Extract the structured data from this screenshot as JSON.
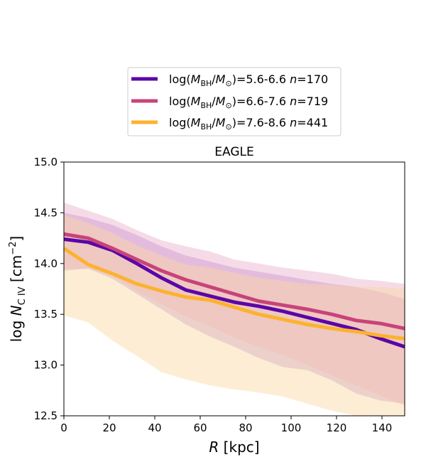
{
  "chart_data": {
    "type": "line",
    "title": "EAGLE",
    "xlabel": {
      "var": "R",
      "unit": " [kpc]"
    },
    "ylabel": {
      "prefix": "log ",
      "var": "N",
      "sub": "C IV",
      "unit": " [cm",
      "sup": "−2",
      "close": "]"
    },
    "xlim": [
      0,
      150
    ],
    "ylim": [
      12.5,
      15.0
    ],
    "xticks": [
      0,
      20,
      40,
      60,
      80,
      100,
      120,
      140
    ],
    "yticks": [
      12.5,
      13.0,
      13.5,
      14.0,
      14.5,
      15.0
    ],
    "xtick_labels": [
      "0",
      "20",
      "40",
      "60",
      "80",
      "100",
      "120",
      "140"
    ],
    "ytick_labels": [
      "12.5",
      "13.0",
      "13.5",
      "14.0",
      "14.5",
      "15.0"
    ],
    "legend_position": "top-center",
    "grid": false,
    "series": [
      {
        "legend": {
          "log": "log(",
          "m1": "M",
          "s1": "BH",
          "sl": "/",
          "m2": "M",
          "s2": "⊙",
          "range": ")=5.6-6.6 ",
          "n": "n",
          "count": "=170"
        },
        "color": "#5b06a6",
        "band_color": "#bc8fd9",
        "x": [
          0,
          10.7,
          21.4,
          32.1,
          42.9,
          53.6,
          64.3,
          75,
          85.7,
          96.4,
          107.1,
          117.9,
          128.6,
          139.3,
          150
        ],
        "values": [
          14.24,
          14.21,
          14.13,
          14.0,
          13.86,
          13.74,
          13.68,
          13.62,
          13.58,
          13.53,
          13.47,
          13.41,
          13.35,
          13.26,
          13.18
        ],
        "upper": [
          14.5,
          14.45,
          14.38,
          14.28,
          14.17,
          14.08,
          14.02,
          13.96,
          13.92,
          13.88,
          13.84,
          13.8,
          13.77,
          13.72,
          13.65
        ],
        "lower": [
          13.93,
          13.95,
          13.85,
          13.7,
          13.55,
          13.4,
          13.28,
          13.18,
          13.07,
          12.98,
          12.95,
          12.85,
          12.72,
          12.65,
          12.62
        ]
      },
      {
        "legend": {
          "log": "log(",
          "m1": "M",
          "s1": "BH",
          "sl": "/",
          "m2": "M",
          "s2": "⊙",
          "range": ")=6.6-7.6 ",
          "n": "n",
          "count": "=719"
        },
        "color": "#c8437a",
        "band_color": "#e6a6c4",
        "x": [
          0,
          10.7,
          21.4,
          32.1,
          42.9,
          53.6,
          64.3,
          75,
          85.7,
          96.4,
          107.1,
          117.9,
          128.6,
          139.3,
          150
        ],
        "values": [
          14.29,
          14.25,
          14.15,
          14.04,
          13.93,
          13.84,
          13.77,
          13.7,
          13.63,
          13.59,
          13.55,
          13.5,
          13.44,
          13.41,
          13.36
        ],
        "upper": [
          14.6,
          14.52,
          14.44,
          14.33,
          14.23,
          14.17,
          14.12,
          14.04,
          14.0,
          13.96,
          13.93,
          13.9,
          13.85,
          13.83,
          13.8
        ],
        "lower": [
          13.95,
          13.95,
          13.88,
          13.73,
          13.6,
          13.48,
          13.38,
          13.27,
          13.18,
          13.1,
          13.0,
          12.9,
          12.8,
          12.7,
          12.6
        ]
      },
      {
        "legend": {
          "log": "log(",
          "m1": "M",
          "s1": "BH",
          "sl": "/",
          "m2": "M",
          "s2": "⊙",
          "range": ")=7.6-8.6 ",
          "n": "n",
          "count": "=441"
        },
        "color": "#fdb22e",
        "band_color": "#fbd8a0",
        "x": [
          0,
          10.7,
          21.4,
          32.1,
          42.9,
          53.6,
          64.3,
          75,
          85.7,
          96.4,
          107.1,
          117.9,
          128.6,
          139.3,
          150
        ],
        "values": [
          14.15,
          13.99,
          13.9,
          13.8,
          13.73,
          13.67,
          13.64,
          13.57,
          13.5,
          13.45,
          13.4,
          13.36,
          13.33,
          13.29,
          13.26
        ],
        "upper": [
          14.48,
          14.4,
          14.3,
          14.18,
          14.08,
          13.99,
          13.96,
          13.91,
          13.86,
          13.83,
          13.8,
          13.79,
          13.77,
          13.77,
          13.75
        ],
        "lower": [
          13.49,
          13.42,
          13.24,
          13.09,
          12.93,
          12.86,
          12.8,
          12.76,
          12.73,
          12.69,
          12.62,
          12.55,
          12.5,
          12.5,
          12.5
        ]
      }
    ]
  }
}
